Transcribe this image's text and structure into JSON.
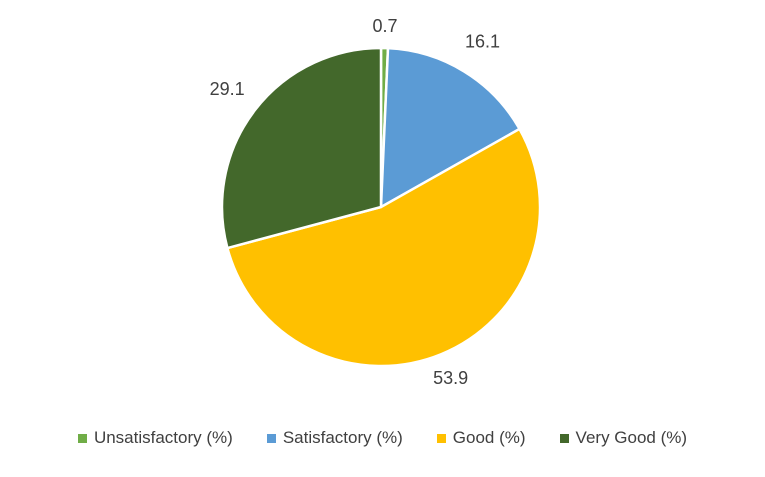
{
  "chart_data": {
    "type": "pie",
    "title": "",
    "categories": [
      "Unsatisfactory (%)",
      "Satisfactory (%)",
      "Good (%)",
      "Very Good (%)"
    ],
    "values": [
      0.7,
      16.1,
      53.9,
      29.1
    ],
    "data_labels": [
      "0.7",
      "16.1",
      "53.9",
      "29.1"
    ],
    "colors": [
      "#70AD47",
      "#5B9BD5",
      "#FFC000",
      "#43682B"
    ],
    "start_angle_deg": 0,
    "direction": "clockwise",
    "legend_position": "bottom"
  }
}
